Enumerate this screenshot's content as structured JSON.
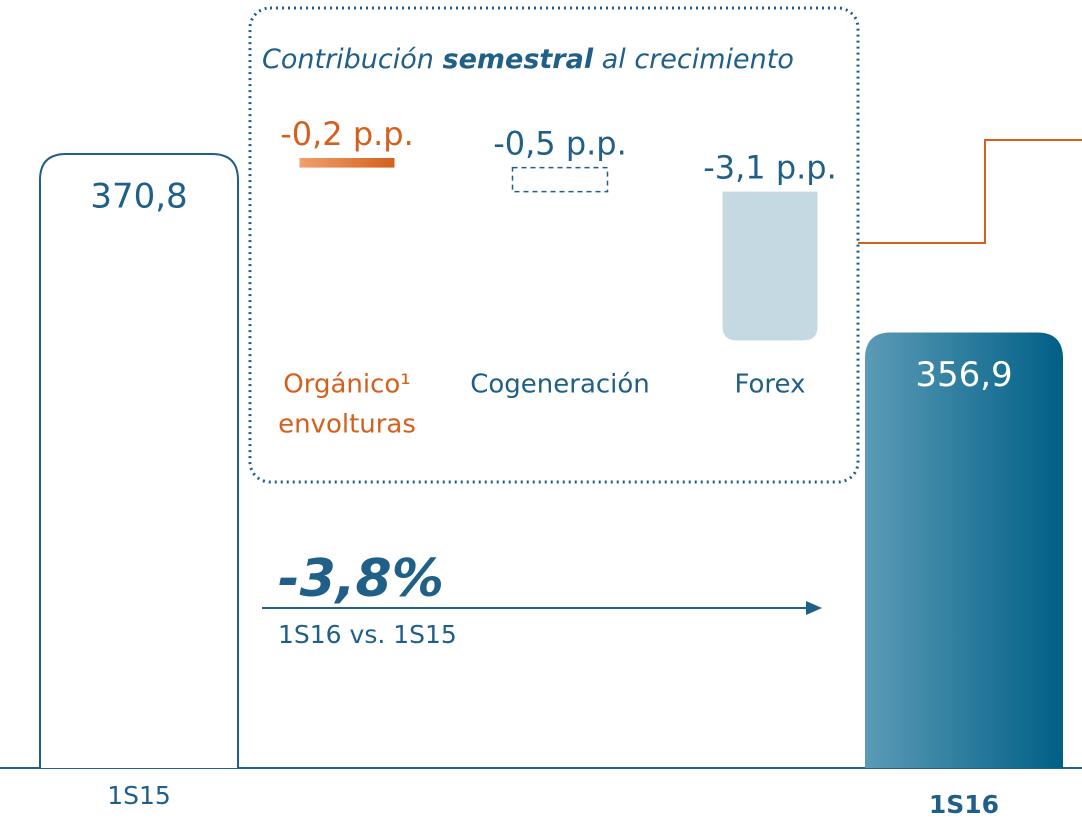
{
  "chart_data": {
    "type": "bar",
    "categories": [
      "1S15",
      "1S16"
    ],
    "values": [
      370.8,
      356.9
    ],
    "value_labels": [
      "370,8",
      "356,9"
    ],
    "ylim": [
      323,
      375
    ],
    "colors": [
      "#ffffff",
      "#1e6f96"
    ],
    "contributions": {
      "title": [
        "Contribución",
        "semestral",
        "al crecimiento"
      ],
      "categories": [
        [
          "Orgánico¹",
          "envolturas"
        ],
        [
          "Cogeneración"
        ],
        [
          "Forex"
        ]
      ],
      "values": [
        -0.2,
        -0.5,
        -3.1
      ],
      "value_labels": [
        "-0,2 p.p.",
        "-0,5 p.p.",
        "-3,1 p.p."
      ],
      "colors": [
        "#d4601e",
        "#1f5f88",
        "#c5d9e3"
      ]
    },
    "growth": {
      "value": -3.8,
      "label": "-3,8%",
      "note": "1S16 vs. 1S15"
    }
  }
}
